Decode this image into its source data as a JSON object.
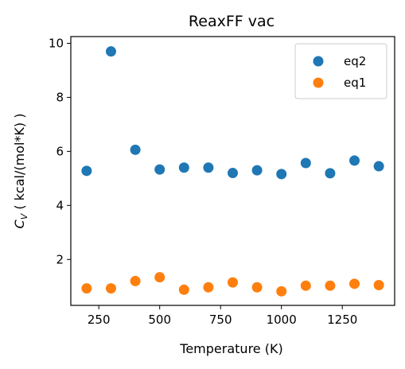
{
  "chart_data": {
    "type": "scatter",
    "title": "ReaxFF vac",
    "xlabel": "Temperature (K)",
    "ylabel_main": "C",
    "ylabel_sub": "V",
    "ylabel_rest": " ( kcal/(mol*K) )",
    "xlim": [
      135,
      1465
    ],
    "ylim": [
      0.3,
      10.25
    ],
    "x_ticks": [
      250,
      500,
      750,
      1000,
      1250
    ],
    "x_tick_labels": [
      "250",
      "500",
      "750",
      "1000",
      "1250"
    ],
    "y_ticks": [
      2,
      4,
      6,
      8,
      10
    ],
    "y_tick_labels": [
      "2",
      "4",
      "6",
      "8",
      "10"
    ],
    "grid": false,
    "legend_placement": "top-right",
    "series": [
      {
        "name": "eq2",
        "color": "#1f77b4",
        "x": [
          200,
          300,
          400,
          500,
          600,
          700,
          800,
          900,
          1000,
          1100,
          1200,
          1300,
          1400
        ],
        "y": [
          5.28,
          9.7,
          6.06,
          5.33,
          5.4,
          5.4,
          5.2,
          5.3,
          5.16,
          5.57,
          5.19,
          5.66,
          5.45
        ]
      },
      {
        "name": "eq1",
        "color": "#ff7f0e",
        "x": [
          200,
          300,
          400,
          500,
          600,
          700,
          800,
          900,
          1000,
          1100,
          1200,
          1300,
          1400
        ],
        "y": [
          0.93,
          0.93,
          1.2,
          1.34,
          0.88,
          0.97,
          1.15,
          0.97,
          0.82,
          1.03,
          1.03,
          1.1,
          1.05
        ]
      }
    ]
  }
}
